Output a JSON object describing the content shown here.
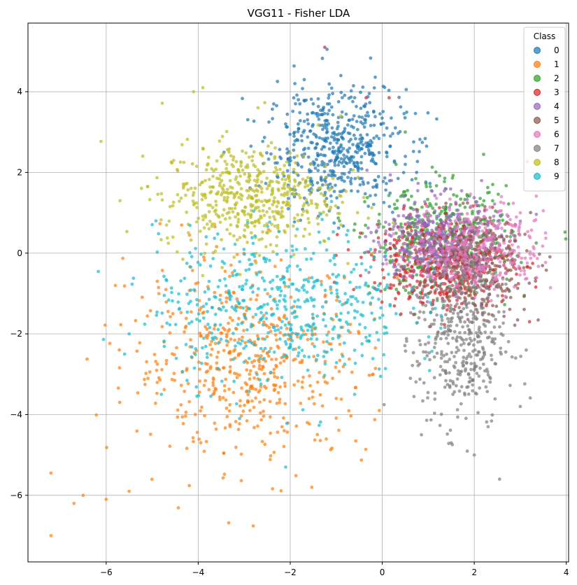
{
  "chart_data": {
    "type": "scatter",
    "title": "VGG11 - Fisher LDA",
    "xlabel": "",
    "ylabel": "",
    "xlim": [
      -7.7,
      4.05
    ],
    "ylim": [
      -7.65,
      5.7
    ],
    "xticks": [
      -6,
      -4,
      -2,
      0,
      2,
      4
    ],
    "yticks": [
      -6,
      -4,
      -2,
      0,
      2,
      4
    ],
    "xtick_labels": [
      "−6",
      "−4",
      "−2",
      "0",
      "2",
      "4"
    ],
    "ytick_labels": [
      "−6",
      "−4",
      "−2",
      "0",
      "2",
      "4"
    ],
    "grid": true,
    "legend": {
      "title": "Class",
      "placement": "top-right",
      "entries": [
        "0",
        "1",
        "2",
        "3",
        "4",
        "5",
        "6",
        "7",
        "8",
        "9"
      ]
    },
    "series": [
      {
        "name": "0",
        "color": "#1f77b4",
        "center": [
          -1.0,
          2.6
        ],
        "spread": [
          0.75,
          0.75
        ],
        "count": 520,
        "points": [
          [
            -1.2,
            5.05
          ],
          [
            -1.9,
            4.2
          ],
          [
            -0.6,
            3.85
          ],
          [
            0.1,
            3.1
          ],
          [
            0.5,
            2.2
          ],
          [
            -2.1,
            3.2
          ],
          [
            -1.5,
            3.7
          ],
          [
            -0.9,
            4.4
          ]
        ]
      },
      {
        "name": "1",
        "color": "#ff7f0e",
        "center": [
          -2.9,
          -2.7
        ],
        "spread": [
          1.3,
          1.2
        ],
        "count": 540,
        "points": [
          [
            -7.2,
            -7.0
          ],
          [
            -7.2,
            -5.45
          ],
          [
            -6.7,
            -6.2
          ],
          [
            -6.5,
            -6.0
          ],
          [
            -6.0,
            -6.1
          ],
          [
            -5.5,
            -5.9
          ],
          [
            -5.8,
            -0.8
          ],
          [
            -0.2,
            -3.0
          ],
          [
            -1.0,
            -3.6
          ]
        ]
      },
      {
        "name": "2",
        "color": "#2ca02c",
        "center": [
          1.3,
          0.3
        ],
        "spread": [
          0.75,
          0.65
        ],
        "count": 460,
        "points": [
          [
            2.4,
            1.7
          ],
          [
            0.5,
            3.0
          ],
          [
            0.3,
            2.2
          ],
          [
            2.5,
            -0.1
          ]
        ]
      },
      {
        "name": "3",
        "color": "#d62728",
        "center": [
          1.3,
          -0.2
        ],
        "spread": [
          0.75,
          0.55
        ],
        "count": 460,
        "points": [
          [
            3.2,
            -1.7
          ],
          [
            0.15,
            3.85
          ],
          [
            -0.35,
            3.85
          ],
          [
            -1.25,
            5.1
          ],
          [
            2.6,
            -1.2
          ]
        ]
      },
      {
        "name": "4",
        "color": "#9467bd",
        "center": [
          1.2,
          0.3
        ],
        "spread": [
          0.65,
          0.55
        ],
        "count": 380,
        "points": [
          [
            2.6,
            0.4
          ],
          [
            0.2,
            1.8
          ]
        ]
      },
      {
        "name": "5",
        "color": "#8c564b",
        "center": [
          2.0,
          -0.3
        ],
        "spread": [
          0.6,
          0.6
        ],
        "count": 340,
        "points": [
          [
            2.9,
            -0.8
          ],
          [
            2.4,
            -1.3
          ],
          [
            1.0,
            -1.0
          ]
        ]
      },
      {
        "name": "6",
        "color": "#e377c2",
        "center": [
          2.0,
          0.1
        ],
        "spread": [
          0.7,
          0.55
        ],
        "count": 380,
        "points": [
          [
            3.5,
            1.05
          ],
          [
            3.55,
            0.5
          ],
          [
            3.0,
            1.0
          ],
          [
            2.9,
            0.7
          ],
          [
            3.3,
            0.8
          ]
        ]
      },
      {
        "name": "7",
        "color": "#7f7f7f",
        "center": [
          1.7,
          -2.1
        ],
        "spread": [
          0.5,
          1.1
        ],
        "count": 420,
        "points": [
          [
            2.55,
            -5.6
          ],
          [
            2.0,
            -5.0
          ],
          [
            3.0,
            -3.8
          ],
          [
            2.9,
            -2.6
          ],
          [
            1.5,
            -4.7
          ],
          [
            2.3,
            -4.3
          ]
        ]
      },
      {
        "name": "8",
        "color": "#bcbd22",
        "center": [
          -2.9,
          1.4
        ],
        "spread": [
          0.95,
          0.65
        ],
        "count": 520,
        "points": [
          [
            -4.1,
            4.0
          ],
          [
            -3.9,
            4.1
          ],
          [
            -5.7,
            1.3
          ],
          [
            -5.1,
            1.65
          ],
          [
            -2.7,
            3.6
          ],
          [
            -0.9,
            3.4
          ]
        ]
      },
      {
        "name": "9",
        "color": "#17becf",
        "center": [
          -2.2,
          -1.3
        ],
        "spread": [
          1.35,
          0.95
        ],
        "count": 520,
        "points": [
          [
            -2.1,
            -5.3
          ],
          [
            -3.1,
            -4.1
          ],
          [
            -5.6,
            -2.5
          ],
          [
            -5.5,
            -2.0
          ],
          [
            0.3,
            -1.5
          ],
          [
            -0.6,
            -3.5
          ],
          [
            -4.8,
            -3.5
          ]
        ]
      }
    ]
  }
}
